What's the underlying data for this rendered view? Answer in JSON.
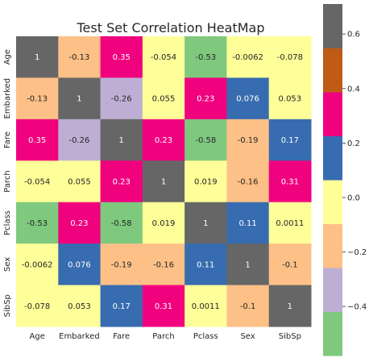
{
  "chart_data": {
    "type": "heatmap",
    "title": "Test Set Correlation HeatMap",
    "xlabel": "",
    "ylabel": "",
    "x_categories": [
      "Age",
      "Embarked",
      "Fare",
      "Parch",
      "Pclass",
      "Sex",
      "SibSp"
    ],
    "y_categories": [
      "Age",
      "Embarked",
      "Fare",
      "Parch",
      "Pclass",
      "Sex",
      "SibSp"
    ],
    "values": [
      [
        1,
        -0.13,
        0.35,
        -0.054,
        -0.53,
        -0.0062,
        -0.078
      ],
      [
        -0.13,
        1,
        -0.26,
        0.055,
        0.23,
        0.076,
        0.053
      ],
      [
        0.35,
        -0.26,
        1,
        0.23,
        -0.58,
        -0.19,
        0.17
      ],
      [
        -0.054,
        0.055,
        0.23,
        1,
        0.019,
        -0.16,
        0.31
      ],
      [
        -0.53,
        0.23,
        -0.58,
        0.019,
        1,
        0.11,
        0.0011
      ],
      [
        -0.0062,
        0.076,
        -0.19,
        -0.16,
        0.11,
        1,
        -0.1
      ],
      [
        -0.078,
        0.053,
        0.17,
        0.31,
        0.0011,
        -0.1,
        1
      ]
    ],
    "labels": [
      [
        "1",
        "-0.13",
        "0.35",
        "-0.054",
        "-0.53",
        "-0.0062",
        "-0.078"
      ],
      [
        "-0.13",
        "1",
        "-0.26",
        "0.055",
        "0.23",
        "0.076",
        "0.053"
      ],
      [
        "0.35",
        "-0.26",
        "1",
        "0.23",
        "-0.58",
        "-0.19",
        "0.17"
      ],
      [
        "-0.054",
        "0.055",
        "0.23",
        "1",
        "0.019",
        "-0.16",
        "0.31"
      ],
      [
        "-0.53",
        "0.23",
        "-0.58",
        "0.019",
        "1",
        "0.11",
        "0.0011"
      ],
      [
        "-0.0062",
        "0.076",
        "-0.19",
        "-0.16",
        "0.11",
        "1",
        "-0.1"
      ],
      [
        "-0.078",
        "0.053",
        "0.17",
        "0.31",
        "0.0011",
        "-0.1",
        "1"
      ]
    ],
    "colormap": "Accent",
    "vmin": -0.58,
    "vmax": 0.71,
    "colors": [
      "#7fc97f",
      "#beaed4",
      "#fdc086",
      "#ffff99",
      "#386cb0",
      "#f0027f",
      "#bf5b17",
      "#666666"
    ],
    "colorbar_ticks": [
      -0.4,
      -0.2,
      0.0,
      0.2,
      0.4,
      0.6
    ],
    "colorbar_tick_labels": [
      "−0.4",
      "−0.2",
      "0.0",
      "0.2",
      "0.4",
      "0.6"
    ],
    "grid": false,
    "colorbar_position": "right"
  }
}
